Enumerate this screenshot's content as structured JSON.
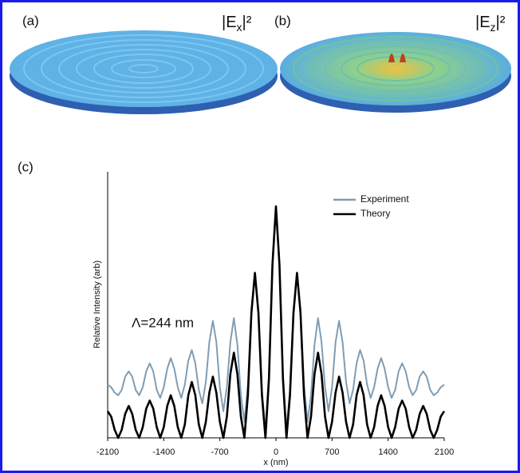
{
  "panels": [
    {
      "label": "(a)",
      "prefix": "|E",
      "subscript": "x",
      "suffix": "|²"
    },
    {
      "label": "(b)",
      "prefix": "|E",
      "subscript": "z",
      "suffix": "|²"
    }
  ],
  "chart_data": {
    "type": "line",
    "panel_label": "(c)",
    "xlabel": "x (nm)",
    "ylabel": "Relative Intensity (arb)",
    "annotation": "Λ=244 nm",
    "x": [
      -2100,
      -2056.25,
      -2012.5,
      -1968.75,
      -1925,
      -1881.25,
      -1837.5,
      -1793.75,
      -1750,
      -1706.25,
      -1662.5,
      -1618.75,
      -1575,
      -1531.25,
      -1487.5,
      -1443.75,
      -1400,
      -1356.25,
      -1312.5,
      -1268.75,
      -1225,
      -1181.25,
      -1137.5,
      -1093.75,
      -1050,
      -1006.25,
      -962.5,
      -918.75,
      -875,
      -831.25,
      -787.5,
      -743.75,
      -700,
      -656.25,
      -612.5,
      -568.75,
      -525,
      -481.25,
      -437.5,
      -393.75,
      -350,
      -306.25,
      -262.5,
      -218.75,
      -175,
      -131.25,
      -87.5,
      -43.75,
      0,
      43.75,
      87.5,
      131.25,
      175,
      218.75,
      262.5,
      306.25,
      350,
      393.75,
      437.5,
      481.25,
      525,
      568.75,
      612.5,
      656.25,
      700,
      743.75,
      787.5,
      831.25,
      875,
      918.75,
      962.5,
      1006.25,
      1050,
      1093.75,
      1137.5,
      1181.25,
      1225,
      1268.75,
      1312.5,
      1356.25,
      1400,
      1443.75,
      1487.5,
      1531.25,
      1575,
      1618.75,
      1662.5,
      1706.25,
      1750,
      1793.75,
      1837.5,
      1881.25,
      1925,
      1968.75,
      2012.5,
      2056.25,
      2100
    ],
    "series": [
      {
        "name": "Experiment",
        "color": "#7f9db5",
        "values": [
          0.2,
          0.19,
          0.17,
          0.16,
          0.18,
          0.23,
          0.25,
          0.23,
          0.18,
          0.16,
          0.19,
          0.25,
          0.28,
          0.25,
          0.18,
          0.15,
          0.19,
          0.26,
          0.3,
          0.26,
          0.19,
          0.15,
          0.2,
          0.29,
          0.33,
          0.28,
          0.18,
          0.13,
          0.21,
          0.36,
          0.44,
          0.36,
          0.19,
          0.1,
          0.19,
          0.36,
          0.45,
          0.35,
          0.16,
          0.06,
          0.2,
          0.48,
          0.62,
          0.47,
          0.18,
          0.03,
          0.24,
          0.66,
          0.87,
          0.66,
          0.24,
          0.03,
          0.18,
          0.47,
          0.62,
          0.48,
          0.2,
          0.06,
          0.16,
          0.35,
          0.45,
          0.36,
          0.19,
          0.1,
          0.19,
          0.36,
          0.44,
          0.36,
          0.21,
          0.13,
          0.18,
          0.28,
          0.33,
          0.29,
          0.2,
          0.15,
          0.19,
          0.26,
          0.3,
          0.26,
          0.19,
          0.15,
          0.18,
          0.25,
          0.28,
          0.25,
          0.19,
          0.16,
          0.18,
          0.23,
          0.25,
          0.23,
          0.18,
          0.16,
          0.17,
          0.19,
          0.2
        ]
      },
      {
        "name": "Theory",
        "color": "#000000",
        "values": [
          0.1,
          0.08,
          0.03,
          0,
          0.03,
          0.09,
          0.12,
          0.09,
          0.03,
          0,
          0.04,
          0.11,
          0.14,
          0.11,
          0.04,
          0,
          0.04,
          0.12,
          0.16,
          0.12,
          0.04,
          0,
          0.05,
          0.16,
          0.21,
          0.16,
          0.05,
          0,
          0.06,
          0.17,
          0.23,
          0.17,
          0.06,
          0,
          0.08,
          0.24,
          0.32,
          0.24,
          0.08,
          0,
          0.16,
          0.47,
          0.62,
          0.47,
          0.16,
          0,
          0.22,
          0.65,
          0.87,
          0.65,
          0.22,
          0,
          0.16,
          0.47,
          0.62,
          0.47,
          0.16,
          0,
          0.08,
          0.24,
          0.32,
          0.24,
          0.08,
          0,
          0.06,
          0.17,
          0.23,
          0.17,
          0.06,
          0,
          0.05,
          0.16,
          0.21,
          0.16,
          0.05,
          0,
          0.04,
          0.12,
          0.16,
          0.12,
          0.04,
          0,
          0.04,
          0.11,
          0.14,
          0.11,
          0.04,
          0,
          0.03,
          0.09,
          0.12,
          0.09,
          0.03,
          0,
          0.03,
          0.08,
          0.1
        ]
      }
    ],
    "xlim": [
      -2100,
      2100
    ],
    "xticks": [
      -2100,
      -1400,
      -700,
      0,
      700,
      1400,
      2100
    ],
    "ylim": [
      0,
      1
    ],
    "legend": "upper right"
  }
}
